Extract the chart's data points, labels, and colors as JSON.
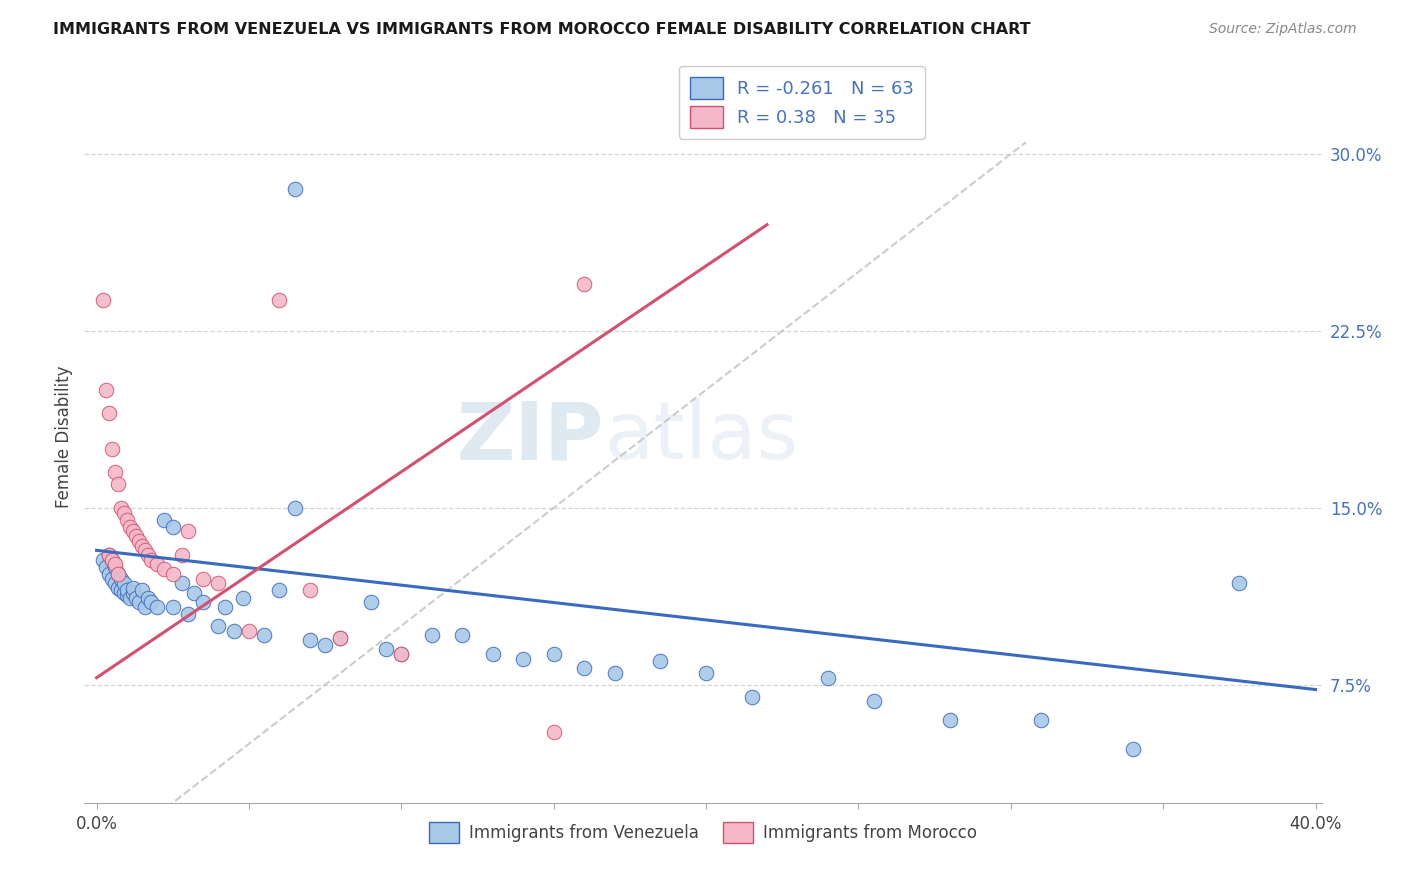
{
  "title": "IMMIGRANTS FROM VENEZUELA VS IMMIGRANTS FROM MOROCCO FEMALE DISABILITY CORRELATION CHART",
  "source": "Source: ZipAtlas.com",
  "ylabel": "Female Disability",
  "xlim": [
    0.0,
    0.4
  ],
  "ylim": [
    0.025,
    0.335
  ],
  "r_venezuela": -0.261,
  "n_venezuela": 63,
  "r_morocco": 0.38,
  "n_morocco": 35,
  "color_venezuela": "#a8c8e8",
  "color_morocco": "#f4b8c8",
  "color_venezuela_line": "#3a6abf",
  "color_morocco_line": "#d45070",
  "color_diagonal": "#c0c0c0",
  "background_color": "#ffffff",
  "grid_color": "#cccccc",
  "watermark_zip": "ZIP",
  "watermark_atlas": "atlas",
  "legend_label_venezuela": "Immigrants from Venezuela",
  "legend_label_morocco": "Immigrants from Morocco",
  "ytick_vals": [
    0.075,
    0.15,
    0.225,
    0.3
  ],
  "ytick_labels": [
    "7.5%",
    "15.0%",
    "22.5%",
    "30.0%"
  ],
  "ven_line_x": [
    0.0,
    0.4
  ],
  "ven_line_y": [
    0.132,
    0.073
  ],
  "mor_line_x": [
    0.0,
    0.22
  ],
  "mor_line_y": [
    0.078,
    0.27
  ],
  "venezuela_x": [
    0.002,
    0.003,
    0.004,
    0.004,
    0.005,
    0.005,
    0.006,
    0.006,
    0.007,
    0.007,
    0.008,
    0.008,
    0.009,
    0.009,
    0.01,
    0.01,
    0.011,
    0.012,
    0.012,
    0.013,
    0.014,
    0.015,
    0.016,
    0.017,
    0.018,
    0.02,
    0.022,
    0.025,
    0.025,
    0.028,
    0.03,
    0.032,
    0.035,
    0.04,
    0.042,
    0.045,
    0.048,
    0.055,
    0.06,
    0.065,
    0.07,
    0.075,
    0.08,
    0.09,
    0.095,
    0.1,
    0.11,
    0.12,
    0.13,
    0.14,
    0.15,
    0.16,
    0.17,
    0.185,
    0.2,
    0.215,
    0.24,
    0.255,
    0.28,
    0.31,
    0.34,
    0.375,
    0.065
  ],
  "venezuela_y": [
    0.128,
    0.125,
    0.122,
    0.13,
    0.12,
    0.128,
    0.118,
    0.125,
    0.116,
    0.122,
    0.115,
    0.12,
    0.114,
    0.118,
    0.113,
    0.115,
    0.112,
    0.114,
    0.116,
    0.112,
    0.11,
    0.115,
    0.108,
    0.112,
    0.11,
    0.108,
    0.145,
    0.142,
    0.108,
    0.118,
    0.105,
    0.114,
    0.11,
    0.1,
    0.108,
    0.098,
    0.112,
    0.096,
    0.115,
    0.15,
    0.094,
    0.092,
    0.095,
    0.11,
    0.09,
    0.088,
    0.096,
    0.096,
    0.088,
    0.086,
    0.088,
    0.082,
    0.08,
    0.085,
    0.08,
    0.07,
    0.078,
    0.068,
    0.06,
    0.06,
    0.048,
    0.118,
    0.285
  ],
  "morocco_x": [
    0.002,
    0.003,
    0.004,
    0.004,
    0.005,
    0.005,
    0.006,
    0.006,
    0.007,
    0.007,
    0.008,
    0.009,
    0.01,
    0.011,
    0.012,
    0.013,
    0.014,
    0.015,
    0.016,
    0.017,
    0.018,
    0.02,
    0.022,
    0.025,
    0.028,
    0.03,
    0.035,
    0.04,
    0.05,
    0.06,
    0.07,
    0.08,
    0.1,
    0.15,
    0.16
  ],
  "morocco_y": [
    0.238,
    0.2,
    0.19,
    0.13,
    0.175,
    0.128,
    0.165,
    0.126,
    0.16,
    0.122,
    0.15,
    0.148,
    0.145,
    0.142,
    0.14,
    0.138,
    0.136,
    0.134,
    0.132,
    0.13,
    0.128,
    0.126,
    0.124,
    0.122,
    0.13,
    0.14,
    0.12,
    0.118,
    0.098,
    0.238,
    0.115,
    0.095,
    0.088,
    0.055,
    0.245
  ]
}
